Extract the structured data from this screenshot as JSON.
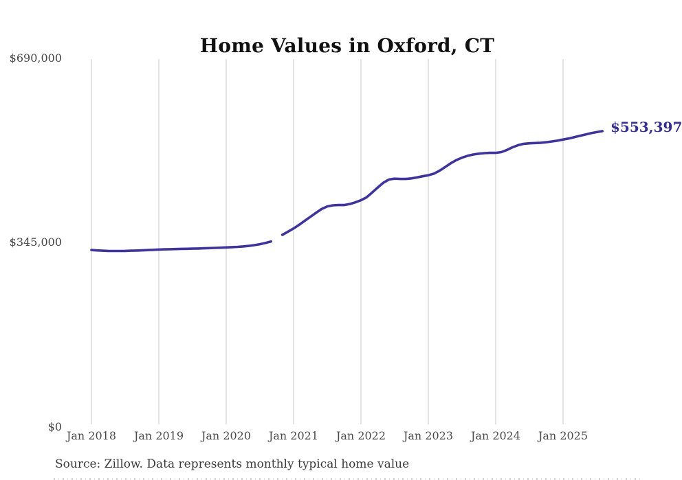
{
  "title": "Home Values in Oxford, CT",
  "source_note": "Source: Zillow. Data represents monthly typical home value",
  "end_label": "$553,397",
  "colors": {
    "line": "#3d359b",
    "end_label": "#342e8c",
    "grid": "#c9c9c9",
    "title": "#111111",
    "axis_labels": "#4a4a4a",
    "source": "#3a3a3a"
  },
  "chart_data": {
    "type": "line",
    "title": "Home Values in Oxford, CT",
    "series_name": "Typical home value (monthly)",
    "xlabel": "",
    "ylabel": "",
    "ylim": [
      0,
      690000
    ],
    "grid": "vertical-only",
    "legend": "none",
    "start_month": "2018-01",
    "end_month": "2025-08",
    "missing_months": [
      "2020-10"
    ],
    "final_value": 553397,
    "y_ticks": [
      {
        "value": 0,
        "label": "$0"
      },
      {
        "value": 345000,
        "label": "$345,000"
      },
      {
        "value": 690000,
        "label": "$690,000"
      }
    ],
    "x_ticks": [
      {
        "index": 0,
        "label": "Jan 2018"
      },
      {
        "index": 12,
        "label": "Jan 2019"
      },
      {
        "index": 24,
        "label": "Jan 2020"
      },
      {
        "index": 36,
        "label": "Jan 2021"
      },
      {
        "index": 48,
        "label": "Jan 2022"
      },
      {
        "index": 60,
        "label": "Jan 2023"
      },
      {
        "index": 72,
        "label": "Jan 2024"
      },
      {
        "index": 84,
        "label": "Jan 2025"
      }
    ],
    "values": [
      330000,
      329300,
      328800,
      328400,
      328200,
      328200,
      328400,
      328700,
      329000,
      329400,
      329900,
      330400,
      330900,
      331300,
      331600,
      331900,
      332200,
      332400,
      332600,
      332900,
      333200,
      333600,
      334000,
      334400,
      334900,
      335400,
      336000,
      336800,
      337800,
      339200,
      341000,
      343300,
      346200,
      null,
      358500,
      364500,
      370500,
      377500,
      385000,
      392500,
      400000,
      407000,
      412000,
      414000,
      414500,
      414500,
      416500,
      419500,
      423500,
      429000,
      438000,
      447500,
      456500,
      462500,
      464000,
      463500,
      463500,
      464500,
      466500,
      468500,
      470500,
      473500,
      479000,
      486000,
      493000,
      499000,
      503500,
      507000,
      509500,
      511000,
      512000,
      512500,
      512500,
      514000,
      518000,
      523000,
      527000,
      529500,
      530500,
      531000,
      531500,
      532500,
      534000,
      535500,
      537500,
      539500,
      542000,
      544500,
      547000,
      549500,
      551500,
      553397
    ]
  },
  "layout": {
    "plot_left_x": 133,
    "plot_right_x": 819,
    "grid_top_y": 86,
    "grid_bottom_y": 618
  }
}
